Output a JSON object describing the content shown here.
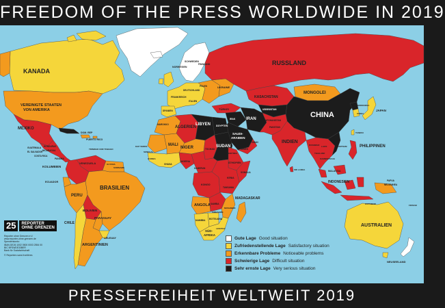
{
  "header": {
    "title": "FREEDOM OF THE PRESS WORLDWIDE IN 2019"
  },
  "footer": {
    "title": "PRESSEFREIHEIT WELTWEIT 2019"
  },
  "colors": {
    "ocean": "#8ccfe6",
    "good": "#ffffff",
    "satisfactory": "#f5d63a",
    "noticeable": "#f39a1e",
    "difficult": "#d9252a",
    "very_serious": "#1c1c1c"
  },
  "legend": [
    {
      "de": "Gute Lage",
      "en": "Good situation",
      "color": "#ffffff"
    },
    {
      "de": "Zufriedenstellende Lage",
      "en": "Satisfactory situation",
      "color": "#f5d63a"
    },
    {
      "de": "Erkennbare Probleme",
      "en": "Noticeable problems",
      "color": "#f39a1e"
    },
    {
      "de": "Schwierige Lage",
      "en": "Difficult situation",
      "color": "#d9252a"
    },
    {
      "de": "Sehr ernste Lage",
      "en": "Very serious situation",
      "color": "#1c1c1c"
    }
  ],
  "organization": {
    "anniversary": "25",
    "name_line1": "REPORTER",
    "name_line2": "OHNE GRENZEN",
    "info": [
      "Reporter ohne Grenzen e.V.",
      "www.reporter-ohne-grenzen.de",
      "Spendenkonto:",
      "IBAN DE26 1002 0500 0003 2554 00",
      "BIC BFSWDE33BER",
      "Bank für Sozialwirtschaft",
      "© Reporters sans frontières"
    ]
  },
  "countries": {
    "kanada": "KANADA",
    "usa_line1": "VEREINIGTE STAATEN",
    "usa_line2": "VON AMERIKA",
    "mexiko": "MEXIKO",
    "kuba": "KUBA",
    "dom_rep": "DOM. REP",
    "puerto_rico": "PUERTO RICO",
    "honduras": "HONDURAS",
    "nicaragua": "NICARAGUA",
    "guatemala": "GUATEMALA",
    "el_salvador": "EL SALVADOR",
    "costa_rica": "COSTA RICA",
    "panama": "PANAMA",
    "venezuela": "VENEZUELA",
    "kolumbien": "KOLUMBIEN",
    "ecuador": "ECUADOR",
    "peru": "PERU",
    "brasilien": "BRASILIEN",
    "bolivien": "BOLIVIEN",
    "paraguay": "PARAGUAY",
    "chile": "CHILE",
    "uruguay": "URUGUAY",
    "argentinien": "ARGENTINIEN",
    "russland": "RUSSLAND",
    "kasachstan": "KASACHSTAN",
    "mongolei": "MONGOLEI",
    "china": "CHINA",
    "japan": "JAPAN",
    "iran": "IRAN",
    "indien": "INDIEN",
    "algerien": "ALGERIEN",
    "libyen": "LIBYEN",
    "aegypten": "ÄGYPTEN",
    "saudi_arabien_1": "SAUDI-",
    "saudi_arabien_2": "ARABIEN",
    "sudan": "SUDAN",
    "mali": "MALI",
    "niger": "NIGER",
    "angola": "ANGOLA",
    "madagaskar": "MADAGASKAR",
    "sued_afrika_1": "SÜD-",
    "sued_afrika_2": "AFRIKA",
    "namibia": "NAMIBIA",
    "botsuana": "BOTSUANA",
    "indonesien": "INDONESIEN",
    "philippinen": "PHILIPPINEN",
    "australien": "AUSTRALIEN",
    "neuseeland": "NEUSEELAND",
    "ukraine": "UKRAINE",
    "eritrea": "ERITREA",
    "somalia": "SOMALIA",
    "malaysia": "MALAYSIA",
    "papua_1": "PAPUA",
    "papua_2": "NEUGUINEA",
    "vietnam": "VIETNAM",
    "myanmar": "MYANMAR",
    "thailand": "THAILAND",
    "nordkorea": "NORDKOREA",
    "korea": "KOREA",
    "schweden": "SCHWEDEN",
    "norwegen": "NORWEGEN",
    "finnland": "FINNLAND",
    "frankreich": "FRANKREICH",
    "spanien": "SPANIEN",
    "nigeria": "NIGERIA",
    "ghana": "GHANA",
    "kongo": "KONGO",
    "aethiopien": "ÄTHIOPIEN",
    "kenia": "KENIA",
    "tansania": "TANSANIA",
    "sambia": "SAMBIA",
    "mosambik": "MOSAMBIK",
    "tuerkei": "TÜRKEI",
    "irak": "IRAK",
    "afghanistan": "AFGHANISTAN",
    "pakistan": "PAKISTAN",
    "jemen": "JEMEN",
    "oman": "OMAN",
    "kamerun": "KAMERUN",
    "tschad": "TSCHAD",
    "marokko": "MAROKKO",
    "guinea": "GUINEA",
    "trinidad": "TRINIDAD UND TOBAGO",
    "guyana": "GUYANA",
    "suriname": "SURINAME",
    "kap_verde": "KAP VERDE",
    "senegal": "SENEGAL",
    "sri_lanka": "SRI LANKA",
    "kambodscha": "KAMBODSCHA",
    "laos": "LAOS",
    "taiwan": "TAIWAN",
    "usbekistan": "USBEKISTAN",
    "polen": "POLEN",
    "deutschland": "DEUTSCHLAND",
    "italien": "ITALIEN",
    "fidschi": "FIDSCHI",
    "osttimor": "OSTTIMOR",
    "simbabwe": "SIMBABWE",
    "lesotho": "LESOTHO"
  }
}
